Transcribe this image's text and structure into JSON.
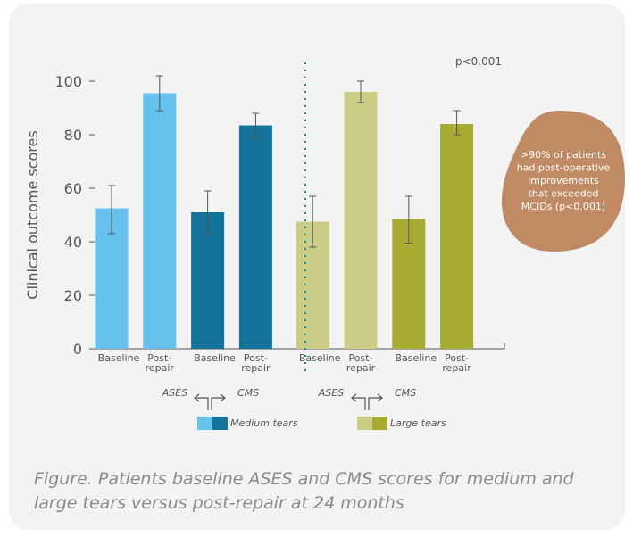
{
  "chart_data": {
    "type": "bar",
    "ylabel": "Clinical outcome scores",
    "ylim": [
      0,
      100
    ],
    "yticks": [
      0,
      20,
      40,
      60,
      80,
      100
    ],
    "categories": [
      "Baseline",
      "Post-repair",
      "Baseline",
      "Post-repair",
      "Baseline",
      "Post-repair",
      "Baseline",
      "Post-repair"
    ],
    "category_lines": [
      [
        "Baseline"
      ],
      [
        "Post-",
        "repair"
      ],
      [
        "Baseline"
      ],
      [
        "Post-",
        "repair"
      ],
      [
        "Baseline"
      ],
      [
        "Post-",
        "repair"
      ],
      [
        "Baseline"
      ],
      [
        "Post-",
        "repair"
      ]
    ],
    "values": [
      52.5,
      95.5,
      51,
      83.5,
      47.5,
      96,
      48.5,
      84
    ],
    "error_low": [
      43,
      89,
      43,
      79,
      38,
      92,
      39.5,
      80
    ],
    "error_high": [
      61,
      102,
      59,
      88,
      57,
      100,
      57,
      89
    ],
    "bar_colors": [
      "#66c1ec",
      "#66c1ec",
      "#13739a",
      "#13739a",
      "#cbcc86",
      "#cbcc86",
      "#a6ab32",
      "#a6ab32"
    ],
    "p_value": "p<0.001",
    "legend": [
      {
        "left": "ASES",
        "right": "CMS",
        "label": "Medium tears",
        "colors": [
          "#66c1ec",
          "#13739a"
        ]
      },
      {
        "left": "ASES",
        "right": "CMS",
        "label": "Large tears",
        "colors": [
          "#cbcc86",
          "#a6ab32"
        ]
      }
    ],
    "annotation": {
      "lines": [
        ">90% of patients",
        "had post-operative",
        "improvements",
        "that exceeded",
        "MCIDs (p<0.001)"
      ],
      "color": "#c08a64"
    }
  },
  "caption": "Figure. Patients baseline ASES and CMS scores for medium and large tears versus post-repair at 24 months"
}
